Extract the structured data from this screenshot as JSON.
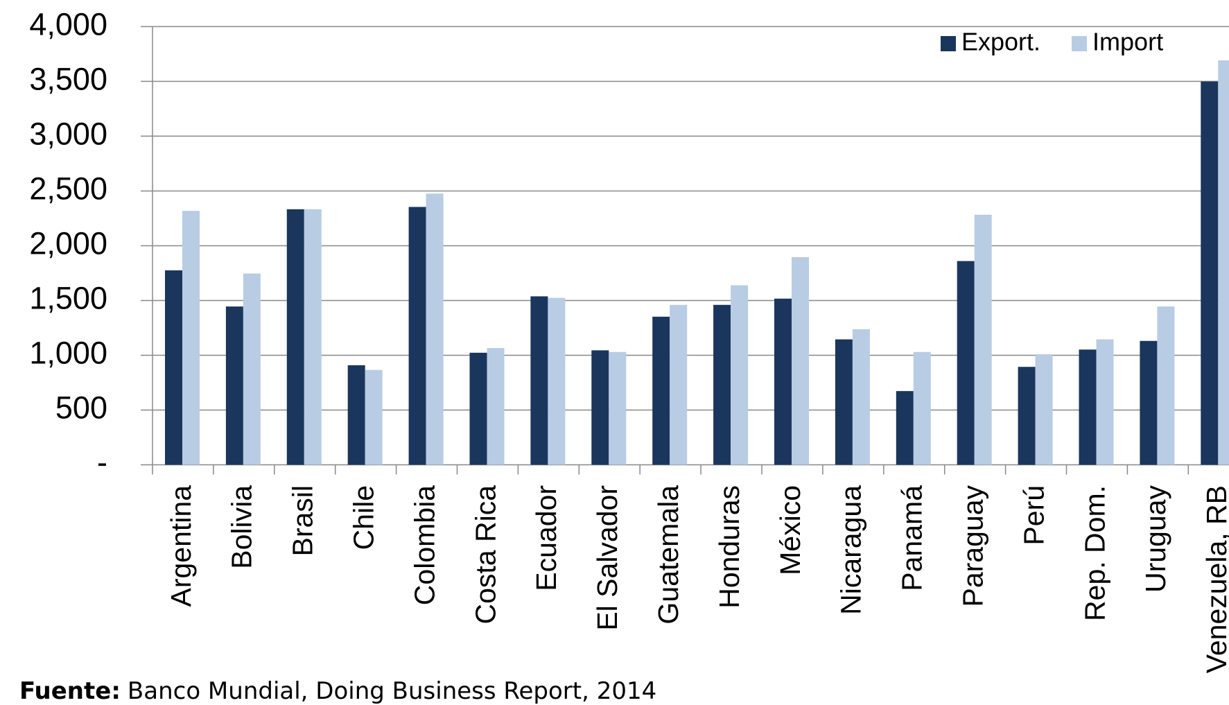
{
  "chart_data": {
    "type": "bar",
    "categories": [
      "Argentina",
      "Bolivia",
      "Brasil",
      "Chile",
      "Colombia",
      "Costa Rica",
      "Ecuador",
      "El Salvador",
      "Guatemala",
      "Honduras",
      "México",
      "Nicaragua",
      "Panamá",
      "Paraguay",
      "Perú",
      "Rep. Dom.",
      "Uruguay",
      "Venezuela, RB"
    ],
    "series": [
      {
        "name": "Export.",
        "color": "#1b365d",
        "values": [
          1775,
          1445,
          2333,
          909,
          2354,
          1023,
          1538,
          1045,
          1352,
          1460,
          1517,
          1145,
          673,
          1860,
          894,
          1052,
          1131,
          3499
        ]
      },
      {
        "name": "Import",
        "color": "#b8cce4",
        "values": [
          2318,
          1746,
          2333,
          866,
          2476,
          1066,
          1524,
          1030,
          1460,
          1639,
          1896,
          1238,
          1030,
          2283,
          1009,
          1145,
          1445,
          3692
        ]
      }
    ],
    "ylim": [
      0,
      4000
    ],
    "yticks": [
      {
        "value": 0,
        "label": "-"
      },
      500,
      {
        "value": 1000,
        "label": "1,000"
      },
      {
        "value": 1500,
        "label": "1,500"
      },
      {
        "value": 2000,
        "label": "2,000"
      },
      {
        "value": 2500,
        "label": "2,500"
      },
      {
        "value": 3000,
        "label": "3,000"
      },
      {
        "value": 3500,
        "label": "3,500"
      },
      {
        "value": 4000,
        "label": "4,000"
      }
    ],
    "grid": true,
    "legend": "top-right",
    "source_label": "Fuente:",
    "source": "Banco Mundial, Doing Business Report, 2014"
  }
}
